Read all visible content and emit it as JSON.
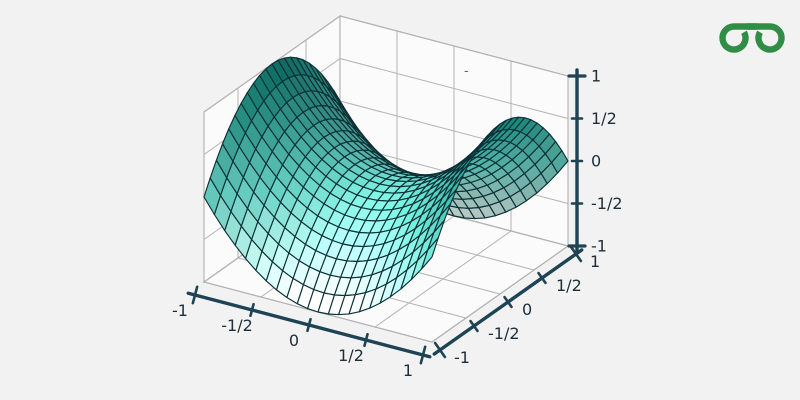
{
  "page": {
    "background": "#f2f2f3"
  },
  "logo": {
    "icon": "geeksforgeeks-logo",
    "color": "#2f8d46"
  },
  "artifact": {
    "stray_mark": "-"
  },
  "chart_data": {
    "type": "surface",
    "title": "",
    "function": "z = x^2 - y^2",
    "projection_style": "matplotlib-3d",
    "grid_divisions": 22,
    "x": {
      "label": "",
      "range": [
        -1,
        1
      ],
      "ticks": [
        {
          "value": -1,
          "label": "-1"
        },
        {
          "value": -0.5,
          "label": "-1/2"
        },
        {
          "value": 0,
          "label": "0"
        },
        {
          "value": 0.5,
          "label": "1/2"
        },
        {
          "value": 1,
          "label": "1"
        }
      ]
    },
    "y": {
      "label": "",
      "range": [
        -1,
        1
      ],
      "ticks": [
        {
          "value": -1,
          "label": "-1"
        },
        {
          "value": -0.5,
          "label": "-1/2"
        },
        {
          "value": 0,
          "label": "0"
        },
        {
          "value": 0.5,
          "label": "1/2"
        },
        {
          "value": 1,
          "label": "1"
        }
      ]
    },
    "z": {
      "label": "",
      "range": [
        -1,
        1
      ],
      "ticks": [
        {
          "value": 1,
          "label": "1"
        },
        {
          "value": 0.5,
          "label": "1/2"
        },
        {
          "value": 0,
          "label": "0"
        },
        {
          "value": -0.5,
          "label": "-1/2"
        },
        {
          "value": -1,
          "label": "-1"
        }
      ]
    },
    "z_values_sample": {
      "x": [
        -1,
        -0.5,
        0,
        0.5,
        1
      ],
      "y": [
        -1,
        -0.5,
        0,
        0.5,
        1
      ],
      "rows_by_y": [
        [
          0,
          -0.75,
          -1,
          -0.75,
          0
        ],
        [
          0.75,
          0,
          -0.25,
          0,
          0.75
        ],
        [
          1,
          0.25,
          0,
          0.25,
          1
        ],
        [
          0.75,
          0,
          -0.25,
          0,
          0.75
        ],
        [
          0,
          -0.75,
          -1,
          -0.75,
          0
        ]
      ]
    },
    "legend": null,
    "grid": true,
    "colors": {
      "surface_low": "#edf9f6",
      "surface_mid": "#62c6b9",
      "surface_high": "#0d7c6f",
      "wire": "#0c3136",
      "axis": "#1d4354",
      "label": "#1d2e36",
      "wall": "#fbfbfc",
      "wall_grid": "#b3b3b3",
      "wall_edge": "#9a9a9a"
    }
  }
}
